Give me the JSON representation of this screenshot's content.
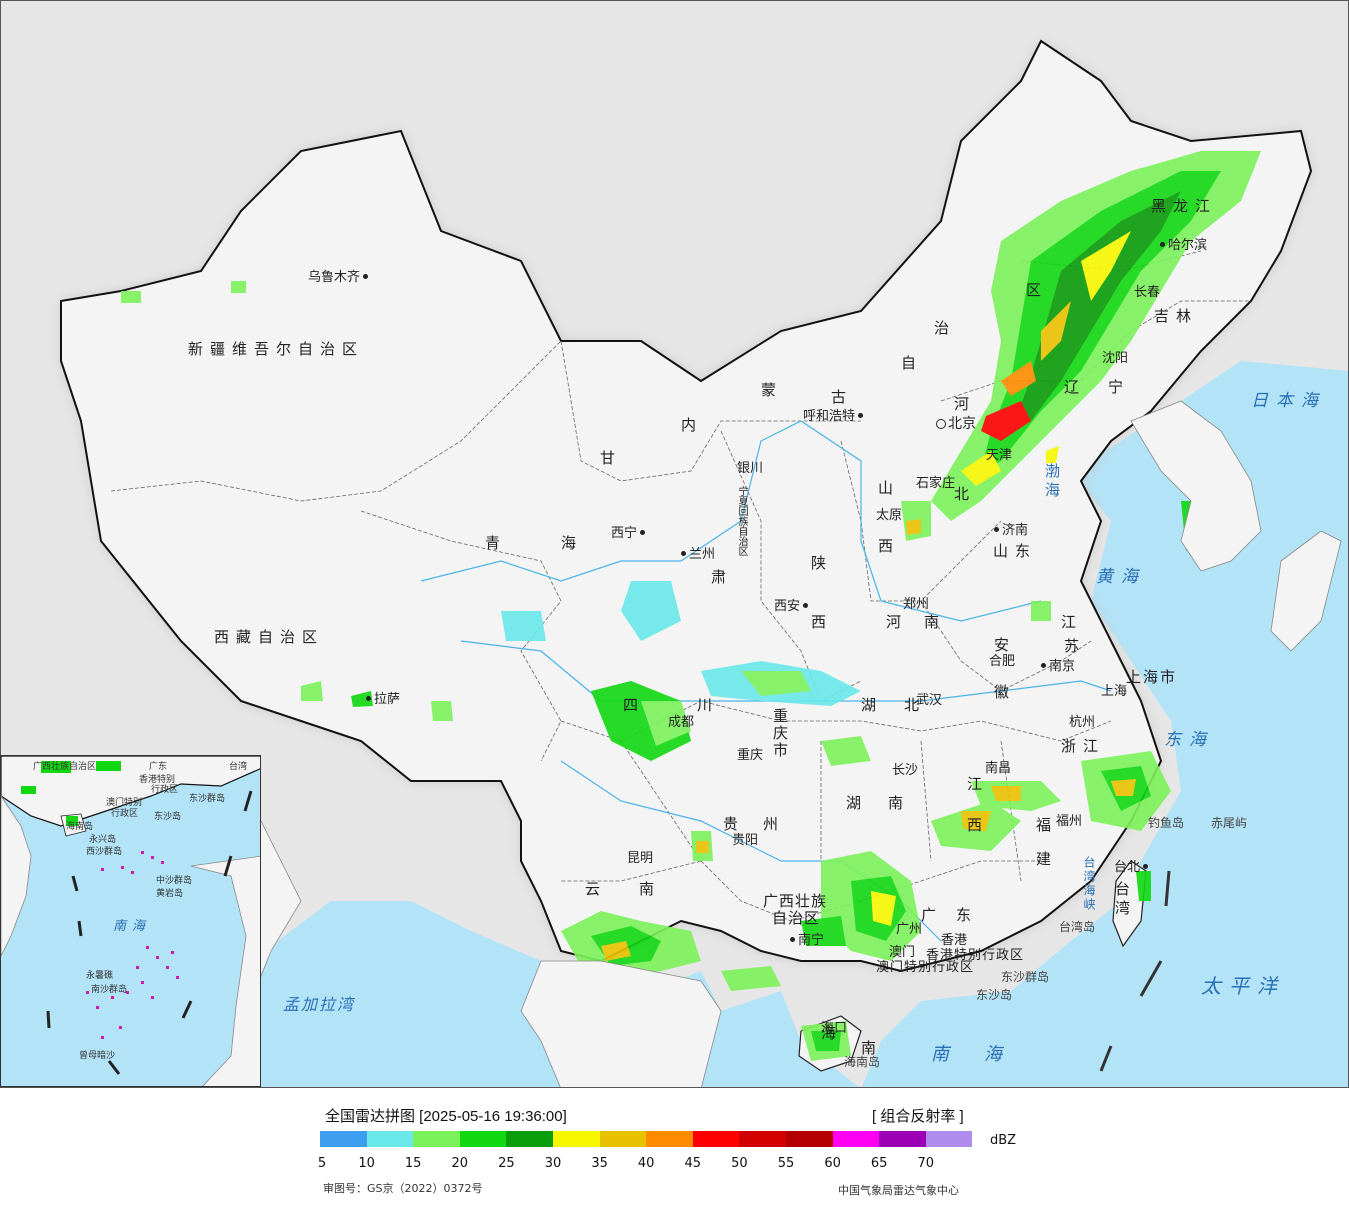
{
  "legend": {
    "title": "全国雷达拼图 [2025-05-16 19:36:00]",
    "product": "[ 组合反射率 ]",
    "unit": "dBZ",
    "colors": [
      "#3d9ef0",
      "#6ae8ea",
      "#7cf25a",
      "#12d812",
      "#0a9c0a",
      "#f7f702",
      "#e8c200",
      "#ff8c00",
      "#ff0000",
      "#d40000",
      "#b40000",
      "#ff00f2",
      "#9b00b5",
      "#b08cef"
    ],
    "ticks": [
      "5",
      "10",
      "15",
      "20",
      "25",
      "30",
      "35",
      "40",
      "45",
      "50",
      "55",
      "60",
      "65",
      "70"
    ],
    "map_approval": "审图号：GS京（2022）0372号",
    "producer": "中国气象局雷达气象中心"
  },
  "map": {
    "provinces": {
      "xinjiang": "新疆维吾尔自治区",
      "xizang": "西藏自治区",
      "qinghai_1": "青",
      "qinghai_2": "海",
      "gansu": "甘",
      "gansu_2": "肃",
      "neimenggu_1": "内",
      "neimenggu_2": "蒙",
      "neimenggu_3": "古",
      "neimenggu_4": "自",
      "neimenggu_5": "治",
      "neimenggu_6": "区",
      "ningxia": "宁夏回族自治区",
      "shaanxi_1": "陕",
      "shaanxi_2": "西",
      "shanxi_1": "山",
      "shanxi_2": "西",
      "henan_1": "河",
      "henan_2": "南",
      "hebei_1": "河",
      "hebei_2": "北",
      "shandong": "山东",
      "heilongjiang": "黑龙江",
      "jilin": "吉林",
      "liaoning_1": "辽",
      "liaoning_2": "宁",
      "jiangsu_1": "江",
      "jiangsu_2": "苏",
      "anhui_1": "安",
      "anhui_2": "徽",
      "shanghai": "上海市",
      "zhejiang": "浙江",
      "hubei_1": "湖",
      "hubei_2": "北",
      "hunan_1": "湖",
      "hunan_2": "南",
      "jiangxi_1": "江",
      "jiangxi_2": "西",
      "fujian_1": "福",
      "fujian_2": "建",
      "sichuan_1": "四",
      "sichuan_2": "川",
      "chongqing": "重庆市",
      "guizhou_1": "贵",
      "guizhou_2": "州",
      "yunnan_1": "云",
      "yunnan_2": "南",
      "guangxi_1": "广西壮族",
      "guangxi_2": "自治区",
      "guangdong_1": "广",
      "guangdong_2": "东",
      "hainan_1": "海",
      "hainan_2": "南",
      "taiwan": "台湾",
      "hk_sar": "香港特别行政区",
      "macao_sar": "澳门特别行政区",
      "tianjin": "天津",
      "beijing": "北京"
    },
    "cities": {
      "urumqi": "乌鲁木齐",
      "lhasa": "拉萨",
      "xining": "西宁",
      "lanzhou": "兰州",
      "yinchuan": "银川",
      "hohhot": "呼和浩特",
      "xian": "西安",
      "taiyuan": "太原",
      "shijiazhuang": "石家庄",
      "zhengzhou": "郑州",
      "jinan": "济南",
      "harbin": "哈尔滨",
      "changchun": "长春",
      "shenyang": "沈阳",
      "nanjing": "南京",
      "hefei": "合肥",
      "shanghai": "上海",
      "hangzhou": "杭州",
      "wuhan": "武汉",
      "chengdu": "成都",
      "chongqing": "重庆",
      "changsha": "长沙",
      "nanchang": "南昌",
      "fuzhou": "福州",
      "guiyang": "贵阳",
      "kunming": "昆明",
      "nanning": "南宁",
      "guangzhou": "广州",
      "hongkong": "香港",
      "macao": "澳门",
      "haikou": "海口",
      "taipei": "台北",
      "tianjin": "天津"
    },
    "seas": {
      "sea_of_japan": "日本海",
      "bohai": "渤海",
      "yellow_sea": "黄海",
      "east_china_sea": "东海",
      "pacific": "太平洋",
      "south_china_sea": "南海",
      "taiwan_strait": "台湾海峡",
      "bay_of_bengal": "孟加拉湾"
    },
    "islands": {
      "diaoyu": "钓鱼岛",
      "chiwei": "赤尾屿",
      "taiwan_island": "台湾岛",
      "dongsha_islands": "东沙群岛",
      "dongsha_island": "东沙岛",
      "hainan_island": "海南岛"
    }
  },
  "inset": {
    "sea": "南海",
    "labels": {
      "guangxi": "广西壮族自治区",
      "guangdong": "广东",
      "taiwan": "台湾",
      "hk": "香港特别",
      "macao": "澳门特别",
      "xingzhengqu": "行政区",
      "dongsha_islands": "东沙群岛",
      "dongsha_island": "东沙岛",
      "hainan": "海南岛",
      "xisha": "西沙群岛",
      "yongxing": "永兴岛",
      "zhongsha": "中沙群岛",
      "huangyan": "黄岩岛",
      "nansha": "南沙群岛",
      "yongshu": "永暑礁",
      "zengmu": "曾母暗沙"
    }
  }
}
